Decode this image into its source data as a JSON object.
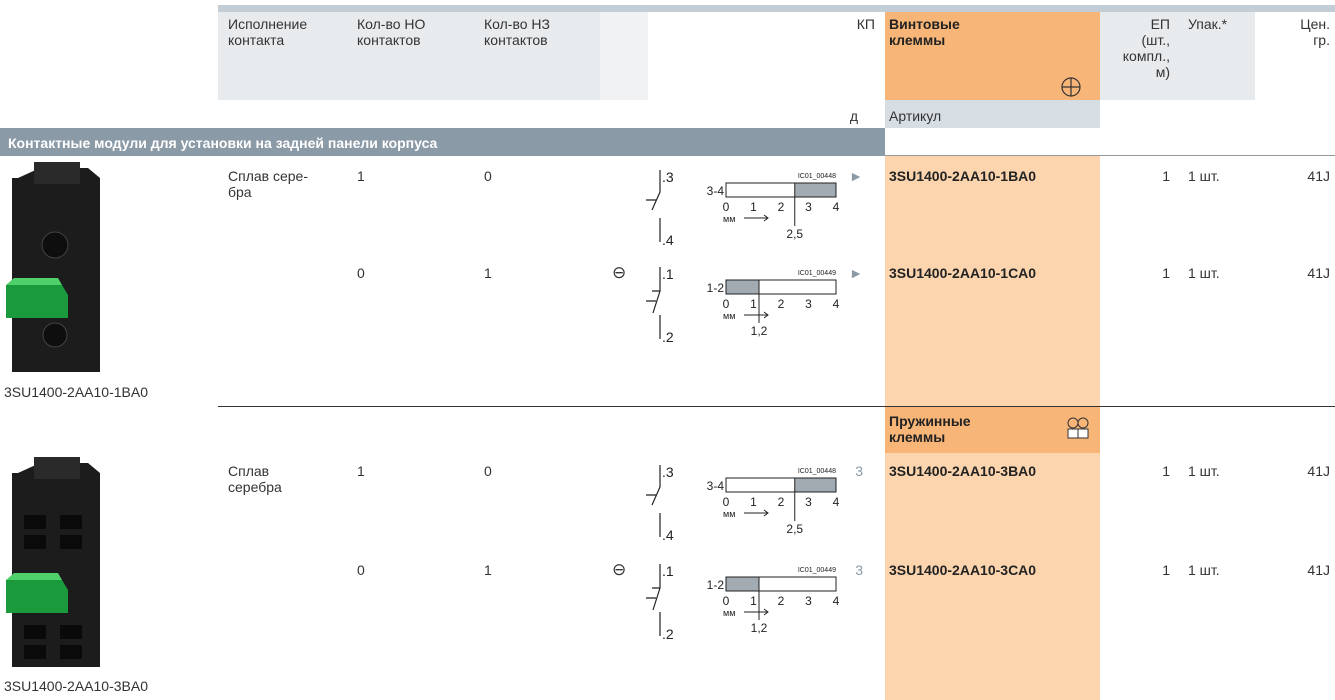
{
  "header": {
    "execution": "Исполнение\nконтакта",
    "no_count": "Кол-во НО\nконтактов",
    "nc_count": "Кол-во НЗ\nконтактов",
    "kp": "КП",
    "screw_terminals": "Винтовые\nклеммы",
    "pu": "ЕП\n(шт.,\nкомпл.,\nм)",
    "pack": "Упак.*",
    "price_group": "Цен.\nгр.",
    "delivery_code": "д",
    "article": "Артикул"
  },
  "section": "Контактные модули для установки на задней панели корпуса",
  "groups": [
    {
      "image_caption": "3SU1400-2AA10-1BA0",
      "rows": [
        {
          "material": "Сплав сере-\nбра",
          "no": 1,
          "nc": 0,
          "diagram": {
            "terminals": [
              ".3",
              ".4"
            ],
            "label": "3-4",
            "id": "IC01_00448",
            "scale": [
              0,
              1,
              2,
              3,
              4
            ],
            "unit": "мм",
            "travel": "2,5"
          },
          "kp": "►",
          "article": "3SU1400-2AA10-1BA0",
          "pu": 1,
          "pack": "1 шт.",
          "price_group": "41J"
        },
        {
          "no": 0,
          "nc": 1,
          "symbol": "⊖",
          "diagram": {
            "terminals": [
              ".1",
              ".2"
            ],
            "label": "1-2",
            "id": "IC01_00449",
            "scale": [
              0,
              1,
              2,
              3,
              4
            ],
            "unit": "мм",
            "travel": "1,2"
          },
          "kp": "►",
          "article": "3SU1400-2AA10-1CA0",
          "pu": 1,
          "pack": "1 шт.",
          "price_group": "41J"
        }
      ]
    },
    {
      "terminal_header": "Пружинные\nклеммы",
      "image_caption": "3SU1400-2AA10-3BA0",
      "rows": [
        {
          "material": "Сплав\nсеребра",
          "no": 1,
          "nc": 0,
          "diagram": {
            "terminals": [
              ".3",
              ".4"
            ],
            "label": "3-4",
            "id": "IC01_00448",
            "scale": [
              0,
              1,
              2,
              3,
              4
            ],
            "unit": "мм",
            "travel": "2,5"
          },
          "kp": "3",
          "article": "3SU1400-2AA10-3BA0",
          "pu": 1,
          "pack": "1 шт.",
          "price_group": "41J"
        },
        {
          "no": 0,
          "nc": 1,
          "symbol": "⊖",
          "diagram": {
            "terminals": [
              ".1",
              ".2"
            ],
            "label": "1-2",
            "id": "IC01_00449",
            "scale": [
              0,
              1,
              2,
              3,
              4
            ],
            "unit": "мм",
            "travel": "1,2"
          },
          "kp": "3",
          "article": "3SU1400-2AA10-3CA0",
          "pu": 1,
          "pack": "1 шт.",
          "price_group": "41J"
        }
      ]
    }
  ]
}
